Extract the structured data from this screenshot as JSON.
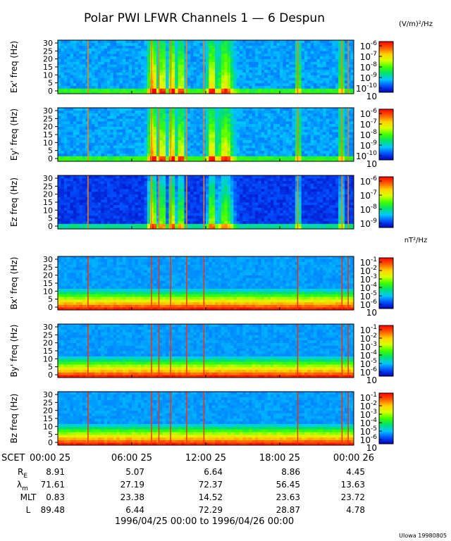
{
  "chart_data": {
    "type": "heatmap",
    "title": "Polar PWI LFWR Channels 1 — 6 Despun",
    "x_ticks": [
      "00:00 25",
      "06:00 25",
      "12:00 25",
      "18:00 25",
      "00:00 26"
    ],
    "x_range_hours": [
      0,
      24
    ],
    "electric_units": "(V/m)²/Hz",
    "magnetic_units": "nT²/Hz",
    "panels": [
      {
        "id": "ex",
        "ylabel": "Ex' freq (Hz)",
        "yticks": [
          "30",
          "25",
          "20",
          "15",
          "10",
          "5",
          "0"
        ],
        "ylim": [
          0,
          30
        ],
        "cb_base": "10",
        "cb_exps": [
          "-6",
          "-7",
          "-8",
          "-9",
          "-10"
        ],
        "cb_last": "10"
      },
      {
        "id": "ey",
        "ylabel": "Ey' freq (Hz)",
        "yticks": [
          "30",
          "25",
          "20",
          "15",
          "10",
          "5",
          "0"
        ],
        "ylim": [
          0,
          30
        ],
        "cb_base": "10",
        "cb_exps": [
          "-6",
          "-7",
          "-8",
          "-9",
          "-10"
        ],
        "cb_last": "10"
      },
      {
        "id": "ez",
        "ylabel": "Ez freq (Hz)",
        "yticks": [
          "30",
          "25",
          "20",
          "15",
          "10",
          "5",
          "0"
        ],
        "ylim": [
          0,
          30
        ],
        "cb_base": "10",
        "cb_exps": [
          "-6",
          "-7",
          "-8",
          "-9"
        ],
        "cb_last": ""
      },
      {
        "id": "bx",
        "ylabel": "Bx' freq (Hz)",
        "yticks": [
          "30",
          "25",
          "20",
          "15",
          "10",
          "5",
          "0"
        ],
        "ylim": [
          0,
          30
        ],
        "cb_base": "10",
        "cb_exps": [
          "-1",
          "-2",
          "-3",
          "-4",
          "-5",
          "-6"
        ],
        "cb_last": "10"
      },
      {
        "id": "by",
        "ylabel": "By' freq (Hz)",
        "yticks": [
          "30",
          "25",
          "20",
          "15",
          "10",
          "5",
          "0"
        ],
        "ylim": [
          0,
          30
        ],
        "cb_base": "10",
        "cb_exps": [
          "-1",
          "-2",
          "-3",
          "-4",
          "-5",
          "-6"
        ],
        "cb_last": "10"
      },
      {
        "id": "bz",
        "ylabel": "Bz freq (Hz)",
        "yticks": [
          "30",
          "25",
          "20",
          "15",
          "10",
          "5",
          "0"
        ],
        "ylim": [
          0,
          30
        ],
        "cb_base": "10",
        "cb_exps": [
          "-1",
          "-2",
          "-3",
          "-4",
          "-5",
          "-6"
        ],
        "cb_last": "10"
      }
    ],
    "ephemeris": {
      "header": "SCET",
      "rows": [
        {
          "label": "R",
          "sub": "E",
          "values": [
            "8.91",
            "5.07",
            "6.64",
            "8.86",
            "4.45"
          ]
        },
        {
          "label": "λ",
          "sub": "m",
          "values": [
            "71.61",
            "27.19",
            "72.37",
            "56.45",
            "13.63"
          ]
        },
        {
          "label": "MLT",
          "sub": "",
          "values": [
            "0.83",
            "23.38",
            "14.52",
            "23.63",
            "23.72"
          ]
        },
        {
          "label": "L",
          "sub": "",
          "values": [
            "89.48",
            "6.44",
            "72.29",
            "28.87",
            "4.78"
          ]
        }
      ]
    },
    "date_range": "1996/04/25 00:00 to 1996/04/26 00:00",
    "credit": "UIowa 19980805",
    "colormap": [
      "#0000b4",
      "#0050ff",
      "#00c8ff",
      "#00e070",
      "#40ff00",
      "#d8ff00",
      "#ffd000",
      "#ff5a00",
      "#ff0000"
    ]
  }
}
